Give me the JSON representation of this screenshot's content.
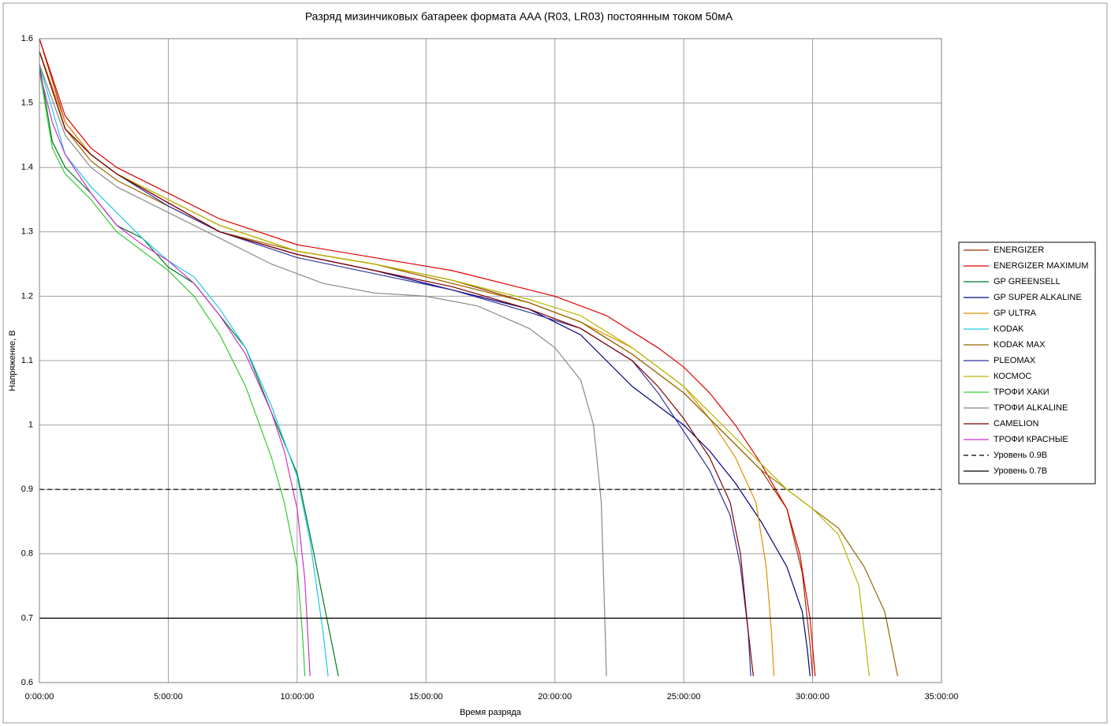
{
  "chart_data": {
    "type": "line",
    "title": "Разряд мизинчиковых батареек формата AAA (R03, LR03) постоянным током 50мА",
    "x_label": "Время разряда",
    "y_label": "Напряжение, В",
    "xlim": [
      0,
      35
    ],
    "ylim": [
      0.6,
      1.6
    ],
    "xticks": [
      {
        "value": 0,
        "label": "0:00:00"
      },
      {
        "value": 5,
        "label": "5:00:00"
      },
      {
        "value": 10,
        "label": "10:00:00"
      },
      {
        "value": 15,
        "label": "15:00:00"
      },
      {
        "value": 20,
        "label": "20:00:00"
      },
      {
        "value": 25,
        "label": "25:00:00"
      },
      {
        "value": 30,
        "label": "30:00:00"
      },
      {
        "value": 35,
        "label": "35:00:00"
      }
    ],
    "yticks": [
      0.6,
      0.7,
      0.8,
      0.9,
      1,
      1.1,
      1.2,
      1.3,
      1.4,
      1.5,
      1.6
    ],
    "grid": true,
    "legend": "right",
    "series": [
      {
        "name": "ENERGIZER",
        "color": "#993300",
        "x": [
          0,
          1,
          2,
          3,
          5,
          7,
          10,
          13,
          16,
          19,
          21,
          23,
          25,
          26,
          27,
          28,
          29,
          29.6,
          29.9,
          30
        ],
        "values": [
          1.6,
          1.47,
          1.42,
          1.39,
          1.35,
          1.31,
          1.27,
          1.25,
          1.225,
          1.19,
          1.16,
          1.11,
          1.05,
          1.01,
          0.97,
          0.93,
          0.87,
          0.77,
          0.66,
          0.61
        ]
      },
      {
        "name": "ENERGIZER MAXIMUM",
        "color": "#e00000",
        "x": [
          0,
          1,
          2,
          3,
          5,
          7,
          10,
          13,
          16,
          18,
          20,
          22,
          24,
          25,
          26,
          27,
          28,
          29,
          29.5,
          29.9,
          30.1
        ],
        "values": [
          1.6,
          1.48,
          1.43,
          1.4,
          1.36,
          1.32,
          1.28,
          1.26,
          1.24,
          1.22,
          1.2,
          1.17,
          1.12,
          1.09,
          1.05,
          1.0,
          0.94,
          0.87,
          0.8,
          0.7,
          0.61
        ]
      },
      {
        "name": "GP GREENSELL",
        "color": "#007a20",
        "x": [
          0,
          0.5,
          1,
          2,
          3,
          4,
          5,
          6,
          7,
          8,
          9,
          10,
          10.5,
          11,
          11.6
        ],
        "values": [
          1.56,
          1.44,
          1.4,
          1.36,
          1.31,
          1.29,
          1.245,
          1.22,
          1.17,
          1.12,
          1.02,
          0.925,
          0.83,
          0.73,
          0.61
        ]
      },
      {
        "name": "GP SUPER ALKALINE",
        "color": "#000080",
        "x": [
          0,
          1,
          2,
          3,
          5,
          7,
          10,
          13,
          16,
          19,
          20,
          21,
          22,
          23,
          24,
          25,
          26,
          27,
          28,
          29,
          29.6,
          29.8,
          29.9
        ],
        "values": [
          1.58,
          1.46,
          1.42,
          1.39,
          1.345,
          1.3,
          1.265,
          1.24,
          1.21,
          1.18,
          1.16,
          1.14,
          1.1,
          1.06,
          1.03,
          1.0,
          0.96,
          0.91,
          0.85,
          0.78,
          0.71,
          0.65,
          0.61
        ]
      },
      {
        "name": "GP ULTRA",
        "color": "#e09000",
        "x": [
          0,
          1,
          2,
          3,
          5,
          7,
          10,
          13,
          16,
          19,
          21,
          23,
          25,
          26,
          27,
          27.8,
          28.2,
          28.4,
          28.5
        ],
        "values": [
          1.58,
          1.47,
          1.42,
          1.39,
          1.35,
          1.31,
          1.27,
          1.25,
          1.22,
          1.19,
          1.16,
          1.12,
          1.06,
          1.01,
          0.95,
          0.88,
          0.78,
          0.68,
          0.61
        ]
      },
      {
        "name": "KODAK",
        "color": "#20c8e0",
        "x": [
          0,
          1,
          2,
          3,
          4,
          5,
          6,
          7,
          8,
          9,
          10,
          10.5,
          11,
          11.2
        ],
        "values": [
          1.56,
          1.42,
          1.37,
          1.33,
          1.29,
          1.255,
          1.23,
          1.18,
          1.12,
          1.03,
          0.92,
          0.82,
          0.68,
          0.61
        ]
      },
      {
        "name": "KODAK MAX",
        "color": "#996600",
        "x": [
          0,
          1,
          2,
          3,
          5,
          7,
          10,
          13,
          16,
          19,
          21,
          23,
          25,
          26,
          27,
          28,
          29,
          30,
          31,
          32,
          32.8,
          33.3
        ],
        "values": [
          1.58,
          1.46,
          1.41,
          1.38,
          1.34,
          1.3,
          1.27,
          1.25,
          1.22,
          1.19,
          1.16,
          1.11,
          1.05,
          1.01,
          0.97,
          0.93,
          0.9,
          0.87,
          0.84,
          0.78,
          0.71,
          0.61
        ]
      },
      {
        "name": "PLEOMAX",
        "color": "#333399",
        "x": [
          0,
          1,
          2,
          3,
          5,
          7,
          10,
          13,
          16,
          19,
          21,
          23,
          24,
          25,
          26,
          26.8,
          27.2,
          27.5,
          27.6
        ],
        "values": [
          1.58,
          1.46,
          1.42,
          1.39,
          1.34,
          1.3,
          1.26,
          1.235,
          1.21,
          1.175,
          1.15,
          1.1,
          1.05,
          0.99,
          0.93,
          0.86,
          0.78,
          0.68,
          0.61
        ]
      },
      {
        "name": "КОСМОС",
        "color": "#b8b800",
        "x": [
          0,
          1,
          2,
          3,
          5,
          7,
          10,
          13,
          16,
          19,
          21,
          23,
          25,
          26,
          27,
          28,
          29,
          30,
          31,
          31.8,
          32.2
        ],
        "values": [
          1.58,
          1.46,
          1.42,
          1.39,
          1.35,
          1.31,
          1.27,
          1.25,
          1.225,
          1.195,
          1.17,
          1.12,
          1.06,
          1.02,
          0.98,
          0.94,
          0.9,
          0.87,
          0.83,
          0.75,
          0.61
        ]
      },
      {
        "name": "ТРОФИ ХАКИ",
        "color": "#33cc33",
        "x": [
          0,
          0.5,
          1,
          2,
          3,
          4,
          5,
          6,
          7,
          8,
          9,
          9.5,
          10,
          10.2,
          10.3
        ],
        "values": [
          1.55,
          1.43,
          1.39,
          1.35,
          1.3,
          1.27,
          1.24,
          1.2,
          1.14,
          1.06,
          0.95,
          0.88,
          0.78,
          0.68,
          0.61
        ]
      },
      {
        "name": "ТРОФИ ALKALINE",
        "color": "#888888",
        "x": [
          0,
          1,
          2,
          3,
          5,
          7,
          9,
          11,
          13,
          15,
          17,
          19,
          20,
          21,
          21.5,
          21.8,
          21.9,
          22
        ],
        "values": [
          1.56,
          1.45,
          1.4,
          1.37,
          1.33,
          1.29,
          1.25,
          1.22,
          1.205,
          1.2,
          1.185,
          1.15,
          1.12,
          1.07,
          1.0,
          0.88,
          0.75,
          0.61
        ]
      },
      {
        "name": "CAMELION",
        "color": "#800000",
        "x": [
          0,
          1,
          2,
          3,
          5,
          7,
          10,
          13,
          16,
          19,
          21,
          23,
          24,
          25,
          26,
          26.8,
          27.2,
          27.5,
          27.7
        ],
        "values": [
          1.58,
          1.46,
          1.42,
          1.39,
          1.345,
          1.3,
          1.265,
          1.24,
          1.215,
          1.18,
          1.15,
          1.1,
          1.06,
          1.01,
          0.95,
          0.88,
          0.8,
          0.68,
          0.61
        ]
      },
      {
        "name": "ТРОФИ КРАСНЫЕ",
        "color": "#cc33cc",
        "x": [
          0,
          0.5,
          1,
          2,
          3,
          4,
          5,
          6,
          7,
          8,
          9,
          9.5,
          10,
          10.3,
          10.5
        ],
        "values": [
          1.55,
          1.47,
          1.42,
          1.36,
          1.31,
          1.28,
          1.255,
          1.22,
          1.17,
          1.11,
          1.02,
          0.96,
          0.87,
          0.76,
          0.61
        ]
      },
      {
        "name": "Уровень 0.9В",
        "color": "#000000",
        "dash": true,
        "x": [
          0,
          35
        ],
        "values": [
          0.9,
          0.9
        ]
      },
      {
        "name": "Уровень 0.7В",
        "color": "#000000",
        "dash": false,
        "x": [
          0,
          35
        ],
        "values": [
          0.7,
          0.7
        ]
      }
    ]
  }
}
